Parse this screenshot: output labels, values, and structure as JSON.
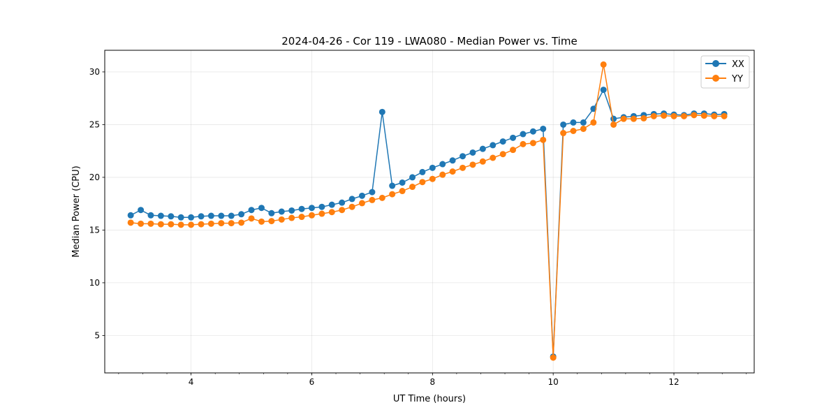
{
  "chart_data": {
    "type": "line",
    "title": "2024-04-26 - Cor 119 - LWA080 - Median Power vs. Time",
    "xlabel": "UT Time (hours)",
    "ylabel": "Median Power (CPU)",
    "xlim": [
      2.57,
      13.33
    ],
    "ylim": [
      1.45,
      32.05
    ],
    "xticks": [
      4,
      6,
      8,
      10,
      12
    ],
    "yticks": [
      5,
      10,
      15,
      20,
      25,
      30
    ],
    "x_minor_step": 0.4,
    "grid": true,
    "legend_position": "top-right",
    "x": [
      3.0,
      3.167,
      3.333,
      3.5,
      3.667,
      3.833,
      4.0,
      4.167,
      4.333,
      4.5,
      4.667,
      4.833,
      5.0,
      5.167,
      5.333,
      5.5,
      5.667,
      5.833,
      6.0,
      6.167,
      6.333,
      6.5,
      6.667,
      6.833,
      7.0,
      7.167,
      7.333,
      7.5,
      7.667,
      7.833,
      8.0,
      8.167,
      8.333,
      8.5,
      8.667,
      8.833,
      9.0,
      9.167,
      9.333,
      9.5,
      9.667,
      9.833,
      10.0,
      10.167,
      10.333,
      10.5,
      10.667,
      10.833,
      11.0,
      11.167,
      11.333,
      11.5,
      11.667,
      11.833,
      12.0,
      12.167,
      12.333,
      12.5,
      12.667,
      12.833
    ],
    "series": [
      {
        "name": "XX",
        "color": "#1f77b4",
        "values": [
          16.4,
          16.9,
          16.4,
          16.35,
          16.3,
          16.2,
          16.2,
          16.3,
          16.35,
          16.35,
          16.35,
          16.5,
          16.9,
          17.1,
          16.6,
          16.75,
          16.85,
          17.0,
          17.1,
          17.2,
          17.4,
          17.6,
          17.95,
          18.25,
          18.6,
          26.2,
          19.2,
          19.5,
          20.0,
          20.5,
          20.9,
          21.25,
          21.6,
          22.0,
          22.35,
          22.7,
          23.05,
          23.4,
          23.75,
          24.1,
          24.35,
          24.6,
          3.0,
          25.0,
          25.2,
          25.2,
          26.5,
          28.3,
          25.55,
          25.7,
          25.8,
          25.9,
          26.0,
          26.05,
          25.95,
          25.9,
          26.05,
          26.05,
          25.95,
          26.0
        ]
      },
      {
        "name": "YY",
        "color": "#ff7f0e",
        "values": [
          15.7,
          15.6,
          15.6,
          15.55,
          15.55,
          15.5,
          15.5,
          15.55,
          15.6,
          15.65,
          15.65,
          15.7,
          16.1,
          15.8,
          15.85,
          16.0,
          16.15,
          16.25,
          16.4,
          16.55,
          16.7,
          16.9,
          17.2,
          17.55,
          17.85,
          18.05,
          18.4,
          18.7,
          19.1,
          19.55,
          19.85,
          20.25,
          20.55,
          20.9,
          21.2,
          21.5,
          21.85,
          22.2,
          22.6,
          23.15,
          23.25,
          23.55,
          2.9,
          24.2,
          24.4,
          24.6,
          25.2,
          30.7,
          25.0,
          25.55,
          25.55,
          25.6,
          25.8,
          25.85,
          25.8,
          25.8,
          25.9,
          25.85,
          25.8,
          25.8
        ]
      }
    ]
  }
}
